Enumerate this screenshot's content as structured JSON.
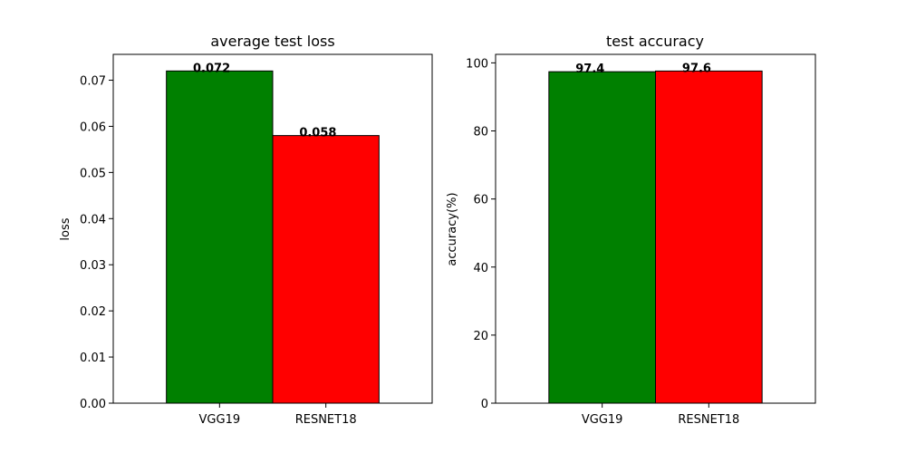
{
  "chart_data": [
    {
      "type": "bar",
      "title": "average test loss",
      "xlabel": "",
      "ylabel": "loss",
      "categories": [
        "VGG19",
        "RESNET18"
      ],
      "values": [
        0.072,
        0.058
      ],
      "data_labels": [
        "0.072",
        "0.058"
      ],
      "colors": [
        "#008000",
        "#ff0000"
      ],
      "ylim": [
        0,
        0.0756
      ],
      "yticks": [
        0,
        0.01,
        0.02,
        0.03,
        0.04,
        0.05,
        0.06,
        0.07
      ],
      "ytick_labels": [
        "0.00",
        "0.01",
        "0.02",
        "0.03",
        "0.04",
        "0.05",
        "0.06",
        "0.07"
      ],
      "grid": false,
      "legend": "none"
    },
    {
      "type": "bar",
      "title": "test accuracy",
      "xlabel": "",
      "ylabel": "accuracy(%)",
      "categories": [
        "VGG19",
        "RESNET18"
      ],
      "values": [
        97.4,
        97.6
      ],
      "data_labels": [
        "97.4",
        "97.6"
      ],
      "colors": [
        "#008000",
        "#ff0000"
      ],
      "ylim": [
        0,
        102.5
      ],
      "yticks": [
        0,
        20,
        40,
        60,
        80,
        100
      ],
      "ytick_labels": [
        "0",
        "20",
        "40",
        "60",
        "80",
        "100"
      ],
      "grid": false,
      "legend": "none"
    }
  ]
}
